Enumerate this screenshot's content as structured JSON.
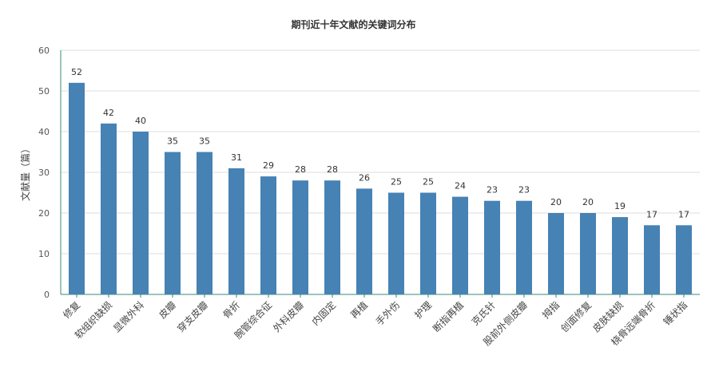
{
  "chart_data": {
    "type": "bar",
    "title": "期刊近十年文献的关键词分布",
    "ylabel": "文献量（篇）",
    "xlabel": "",
    "ylim": [
      0,
      60
    ],
    "yticks": [
      0,
      10,
      20,
      30,
      40,
      50,
      60
    ],
    "grid": true,
    "bar_color": "#4682B4",
    "categories": [
      "修复",
      "软组织缺损",
      "显微外科",
      "皮瓣",
      "穿支皮瓣",
      "骨折",
      "腕管综合征",
      "外科皮瓣",
      "内固定",
      "再植",
      "手外伤",
      "护理",
      "断指再植",
      "克氏针",
      "股前外侧皮瓣",
      "拇指",
      "创面修复",
      "皮肤缺损",
      "桡骨远端骨折",
      "锤状指"
    ],
    "values": [
      52,
      42,
      40,
      35,
      35,
      31,
      29,
      28,
      28,
      26,
      25,
      25,
      24,
      23,
      23,
      20,
      20,
      19,
      17,
      17
    ]
  }
}
